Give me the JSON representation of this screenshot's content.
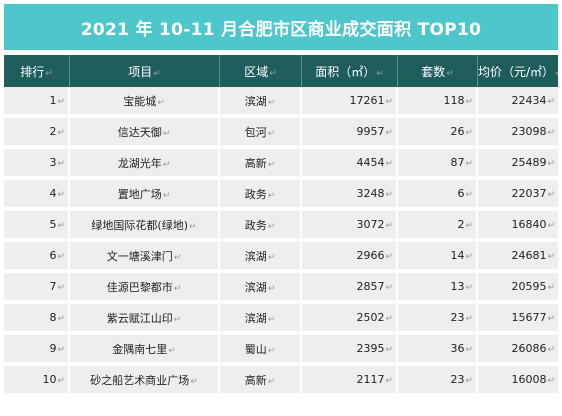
{
  "title": "2021 年 10-11 月合肥市区商业成交面积 TOP10",
  "colors": {
    "title_bg": "#4dc6cc",
    "header_bg": "#1e5d5b",
    "row_bg": "#eeeeee",
    "text": "#222222",
    "return_mark": "#9a9a9a"
  },
  "return_mark": "↵",
  "columns": [
    "排行",
    "项目",
    "区域",
    "面积（㎡）",
    "套数",
    "均价（元/㎡）"
  ],
  "rows": [
    {
      "rank": "1",
      "project": "宝能城",
      "district": "滨湖",
      "area": "17261",
      "units": "118",
      "price": "22434"
    },
    {
      "rank": "2",
      "project": "信达天御",
      "district": "包河",
      "area": "9957",
      "units": "26",
      "price": "23098"
    },
    {
      "rank": "3",
      "project": "龙湖光年",
      "district": "高新",
      "area": "4454",
      "units": "87",
      "price": "25489"
    },
    {
      "rank": "4",
      "project": "置地广场",
      "district": "政务",
      "area": "3248",
      "units": "6",
      "price": "22037"
    },
    {
      "rank": "5",
      "project": "绿地国际花都(绿地)",
      "district": "政务",
      "area": "3072",
      "units": "2",
      "price": "16840"
    },
    {
      "rank": "6",
      "project": "文一塘溪津门",
      "district": "滨湖",
      "area": "2966",
      "units": "14",
      "price": "24681"
    },
    {
      "rank": "7",
      "project": "佳源巴黎都市",
      "district": "滨湖",
      "area": "2857",
      "units": "13",
      "price": "20595"
    },
    {
      "rank": "8",
      "project": "紫云赋江山印",
      "district": "滨湖",
      "area": "2502",
      "units": "23",
      "price": "15677"
    },
    {
      "rank": "9",
      "project": "金隅南七里",
      "district": "蜀山",
      "area": "2395",
      "units": "36",
      "price": "26086"
    },
    {
      "rank": "10",
      "project": "砂之船艺术商业广场",
      "district": "高新",
      "area": "2117",
      "units": "23",
      "price": "16008"
    }
  ]
}
